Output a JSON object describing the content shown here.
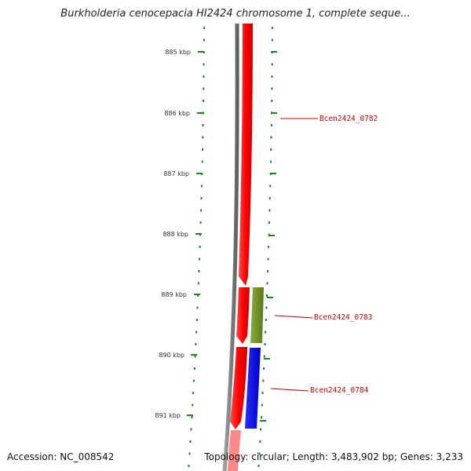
{
  "title": "Burkholderia cenocepacia HI2424 chromosome 1, complete seque...",
  "ruler": {
    "unit": "kbp",
    "ticks": [
      {
        "value": 885,
        "label": "885 kbp"
      },
      {
        "value": 886,
        "label": "886 kbp"
      },
      {
        "value": 887,
        "label": "887 kbp"
      },
      {
        "value": 888,
        "label": "888 kbp"
      },
      {
        "value": 889,
        "label": "889 kbp"
      },
      {
        "value": 890,
        "label": "890 kbp"
      },
      {
        "value": 891,
        "label": "891 kbp"
      }
    ]
  },
  "genes": [
    {
      "id": "Bcen2424_0782",
      "label": "Bcen2424_0782",
      "strand": "reverse",
      "color": "#ff0000",
      "track": "backbone"
    },
    {
      "id": "Bcen2424_0783",
      "label": "Bcen2424_0783",
      "strand": "forward",
      "color": "#6b8e23",
      "track": "outer"
    },
    {
      "id": "Bcen2424_0784",
      "label": "Bcen2424_0784",
      "strand": "forward",
      "color": "#0000ff",
      "track": "outer"
    }
  ],
  "colors": {
    "backbone": "#ff0000",
    "axis": "#808080",
    "ruler_ticks": "#1a8a1a",
    "label_line": "#cc0000"
  },
  "footer": {
    "accession": "Accession: NC_008542",
    "topology": "Topology: circular;",
    "length": "Length: 3,483,902 bp;",
    "genes": "Genes: 3,233"
  }
}
